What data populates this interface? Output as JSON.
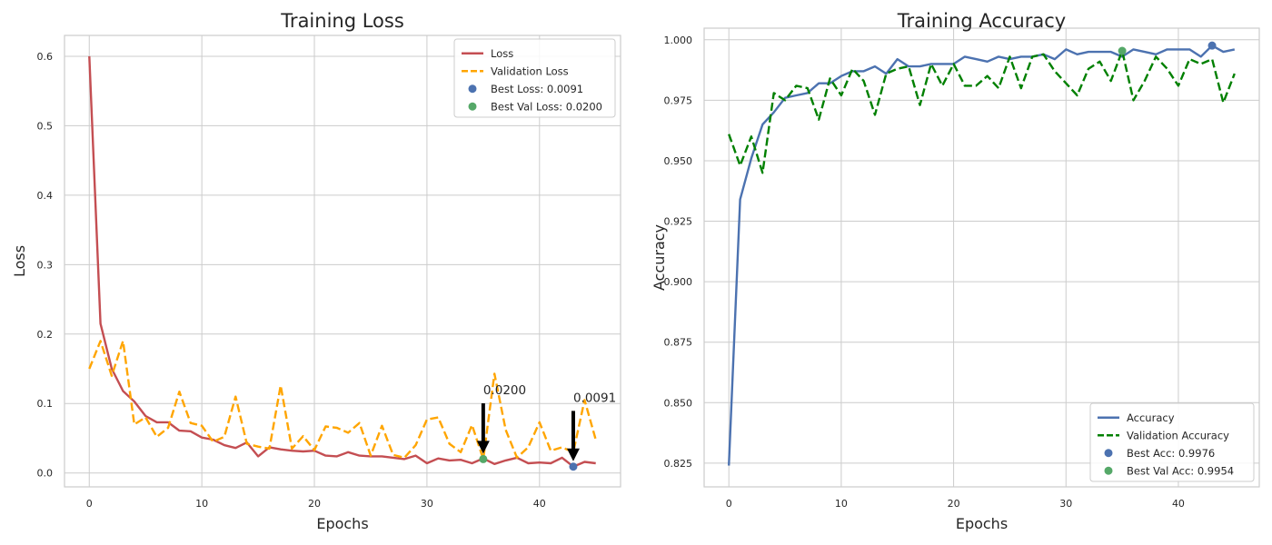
{
  "chart_data": [
    {
      "type": "line",
      "title": "Training Loss",
      "xlabel": "Epochs",
      "ylabel": "Loss",
      "xlim": [
        -2.2,
        47.2
      ],
      "ylim": [
        -0.02,
        0.63
      ],
      "xticks": [
        0,
        10,
        20,
        30,
        40
      ],
      "yticks": [
        0.0,
        0.1,
        0.2,
        0.3,
        0.4,
        0.5,
        0.6
      ],
      "ytick_decimals": 1,
      "grid": true,
      "legend_position": "top-right",
      "series": [
        {
          "name": "Loss",
          "color": "#c44e52",
          "dash": "solid",
          "x": [
            0,
            1,
            2,
            3,
            4,
            5,
            6,
            7,
            8,
            9,
            10,
            11,
            12,
            13,
            14,
            15,
            16,
            17,
            18,
            19,
            20,
            21,
            22,
            23,
            24,
            25,
            26,
            27,
            28,
            29,
            30,
            31,
            32,
            33,
            34,
            35,
            36,
            37,
            38,
            39,
            40,
            41,
            42,
            43,
            44,
            45
          ],
          "values": [
            0.6,
            0.215,
            0.15,
            0.118,
            0.103,
            0.082,
            0.073,
            0.073,
            0.061,
            0.06,
            0.051,
            0.048,
            0.04,
            0.036,
            0.044,
            0.024,
            0.037,
            0.034,
            0.032,
            0.031,
            0.032,
            0.025,
            0.024,
            0.03,
            0.025,
            0.024,
            0.024,
            0.022,
            0.02,
            0.025,
            0.014,
            0.021,
            0.018,
            0.019,
            0.014,
            0.021,
            0.013,
            0.018,
            0.022,
            0.014,
            0.015,
            0.014,
            0.022,
            0.0091,
            0.016,
            0.014
          ]
        },
        {
          "name": "Validation Loss",
          "color": "#ffa500",
          "dash": "dashed",
          "x": [
            0,
            1,
            2,
            3,
            4,
            5,
            6,
            7,
            8,
            9,
            10,
            11,
            12,
            13,
            14,
            15,
            16,
            17,
            18,
            19,
            20,
            21,
            22,
            23,
            24,
            25,
            26,
            27,
            28,
            29,
            30,
            31,
            32,
            33,
            34,
            35,
            36,
            37,
            38,
            39,
            40,
            41,
            42,
            43,
            44,
            45
          ],
          "values": [
            0.15,
            0.19,
            0.14,
            0.19,
            0.07,
            0.08,
            0.052,
            0.065,
            0.117,
            0.072,
            0.068,
            0.045,
            0.052,
            0.11,
            0.042,
            0.038,
            0.035,
            0.126,
            0.035,
            0.053,
            0.033,
            0.067,
            0.065,
            0.058,
            0.072,
            0.025,
            0.068,
            0.026,
            0.022,
            0.04,
            0.077,
            0.08,
            0.042,
            0.03,
            0.069,
            0.02,
            0.143,
            0.062,
            0.022,
            0.037,
            0.073,
            0.032,
            0.037,
            0.03,
            0.105,
            0.048
          ]
        }
      ],
      "markers": [
        {
          "label": "Best Loss: 0.0091",
          "x": 43,
          "y": 0.0091,
          "color": "#4c72b0"
        },
        {
          "label": "Best Val Loss: 0.0200",
          "x": 35,
          "y": 0.02,
          "color": "#55a868"
        }
      ],
      "annotations": [
        {
          "text": "0.0200",
          "x": 35,
          "y": 0.02,
          "text_y": 0.12
        },
        {
          "text": "0.0091",
          "x": 43,
          "y": 0.0091,
          "text_y": 0.109
        }
      ]
    },
    {
      "type": "line",
      "title": "Training Accuracy",
      "xlabel": "Epochs",
      "ylabel": "Accuracy",
      "xlim": [
        -2.2,
        47.2
      ],
      "ylim": [
        0.8152,
        1.0048
      ],
      "xticks": [
        0,
        10,
        20,
        30,
        40
      ],
      "yticks": [
        0.825,
        0.85,
        0.875,
        0.9,
        0.925,
        0.95,
        0.975,
        1.0
      ],
      "ytick_decimals": 3,
      "grid": true,
      "legend_position": "bottom-right",
      "series": [
        {
          "name": "Accuracy",
          "color": "#4c72b0",
          "dash": "solid",
          "x": [
            0,
            1,
            2,
            3,
            4,
            5,
            6,
            7,
            8,
            9,
            10,
            11,
            12,
            13,
            14,
            15,
            16,
            17,
            18,
            19,
            20,
            21,
            22,
            23,
            24,
            25,
            26,
            27,
            28,
            29,
            30,
            31,
            32,
            33,
            34,
            35,
            36,
            37,
            38,
            39,
            40,
            41,
            42,
            43,
            44,
            45
          ],
          "values": [
            0.824,
            0.934,
            0.951,
            0.965,
            0.97,
            0.976,
            0.977,
            0.978,
            0.982,
            0.982,
            0.985,
            0.987,
            0.987,
            0.989,
            0.986,
            0.992,
            0.989,
            0.989,
            0.99,
            0.99,
            0.99,
            0.993,
            0.992,
            0.991,
            0.993,
            0.992,
            0.993,
            0.993,
            0.994,
            0.992,
            0.996,
            0.994,
            0.995,
            0.995,
            0.995,
            0.993,
            0.996,
            0.995,
            0.994,
            0.996,
            0.996,
            0.996,
            0.993,
            0.9976,
            0.995,
            0.996
          ]
        },
        {
          "name": "Validation Accuracy",
          "color": "#008000",
          "dash": "dashed",
          "x": [
            0,
            1,
            2,
            3,
            4,
            5,
            6,
            7,
            8,
            9,
            10,
            11,
            12,
            13,
            14,
            15,
            16,
            17,
            18,
            19,
            20,
            21,
            22,
            23,
            24,
            25,
            26,
            27,
            28,
            29,
            30,
            31,
            32,
            33,
            34,
            35,
            36,
            37,
            38,
            39,
            40,
            41,
            42,
            43,
            44,
            45
          ],
          "values": [
            0.961,
            0.948,
            0.96,
            0.945,
            0.978,
            0.975,
            0.981,
            0.98,
            0.967,
            0.984,
            0.977,
            0.988,
            0.983,
            0.969,
            0.986,
            0.988,
            0.989,
            0.973,
            0.99,
            0.981,
            0.99,
            0.981,
            0.981,
            0.985,
            0.98,
            0.993,
            0.98,
            0.993,
            0.994,
            0.987,
            0.982,
            0.977,
            0.988,
            0.991,
            0.983,
            0.9954,
            0.975,
            0.983,
            0.993,
            0.988,
            0.981,
            0.992,
            0.99,
            0.992,
            0.974,
            0.986
          ]
        }
      ],
      "markers": [
        {
          "label": "Best Acc: 0.9976",
          "x": 43,
          "y": 0.9976,
          "color": "#4c72b0"
        },
        {
          "label": "Best Val Acc: 0.9954",
          "x": 35,
          "y": 0.9954,
          "color": "#55a868"
        }
      ],
      "annotations": []
    }
  ]
}
